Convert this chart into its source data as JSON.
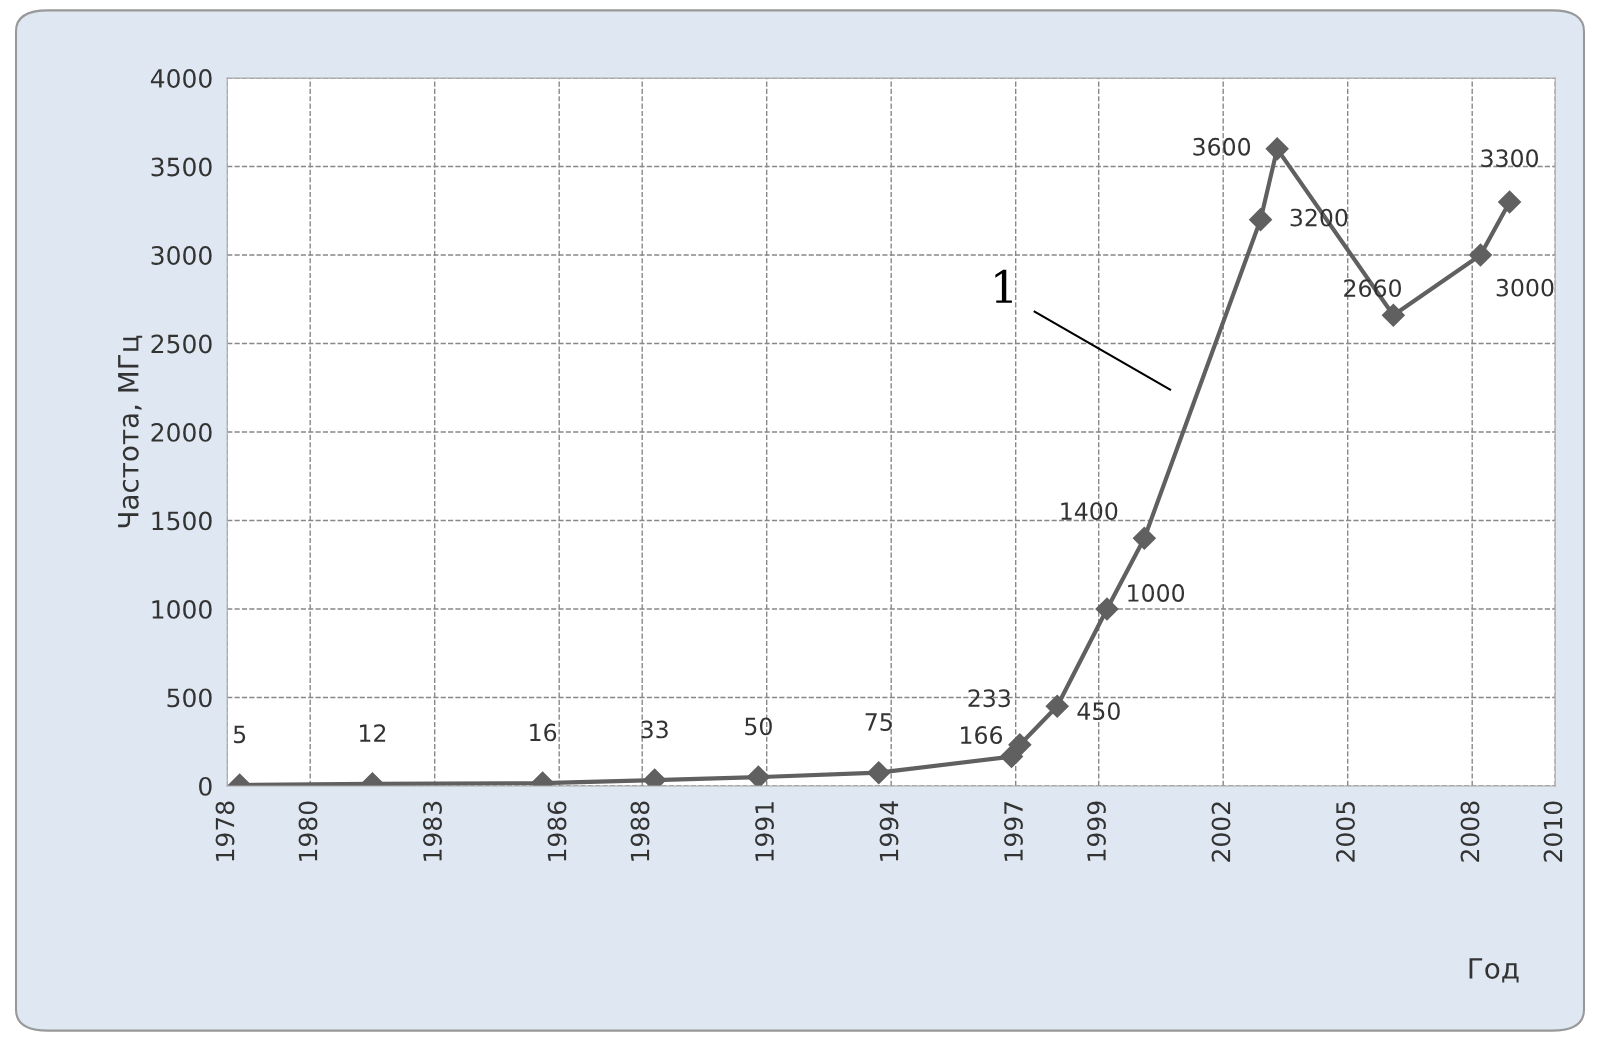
{
  "chart_data": {
    "type": "line",
    "xlabel": "Год",
    "ylabel": "Частота, МГц",
    "x": [
      1978.3,
      1981.5,
      1985.6,
      1988.3,
      1990.8,
      1993.7,
      1996.9,
      1997.1,
      1998.0,
      1999.2,
      2000.1,
      2002.9,
      2003.3,
      2006.1,
      2008.2,
      2008.9
    ],
    "series": [
      {
        "color": "#606060",
        "values": [
          5,
          12,
          16,
          33,
          50,
          75,
          166,
          233,
          450,
          1000,
          1400,
          3200,
          3600,
          2660,
          3000,
          3300
        ]
      }
    ],
    "xlim": [
      1978,
      2010
    ],
    "xticks": [
      1978,
      1980,
      1983,
      1986,
      1988,
      1991,
      1994,
      1997,
      1999,
      2002,
      2005,
      2008,
      2010
    ],
    "ylim": [
      0,
      4000
    ],
    "yticks": [
      0,
      500,
      1000,
      1500,
      2000,
      2500,
      3000,
      3500,
      4000
    ],
    "annotations": [
      "1"
    ],
    "data_labels": true,
    "grid": true,
    "legend": false,
    "marker": "diamond",
    "line_style": "solid"
  }
}
